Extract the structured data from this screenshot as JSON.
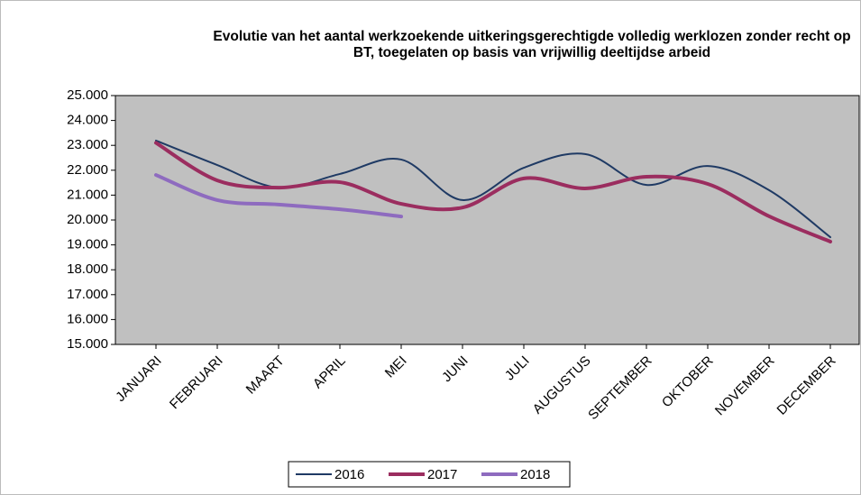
{
  "chart_data": {
    "type": "line",
    "title": "Evolutie van het aantal werkzoekende uitkeringsgerechtigde volledig werklozen  zonder recht op BT, toegelaten op basis van vrijwillig deeltijdse arbeid",
    "categories": [
      "JANUARI",
      "FEBRUARI",
      "MAART",
      "APRIL",
      "MEI",
      "JUNI",
      "JULI",
      "AUGUSTUS",
      "SEPTEMBER",
      "OKTOBER",
      "NOVEMBER",
      "DECEMBER"
    ],
    "series": [
      {
        "name": "2016",
        "color": "#1f3a64",
        "values": [
          23190,
          22210,
          21300,
          21850,
          22430,
          20800,
          22100,
          22650,
          21410,
          22170,
          21200,
          19310
        ]
      },
      {
        "name": "2017",
        "color": "#9b2d5f",
        "values": [
          23100,
          21590,
          21300,
          21520,
          20650,
          20500,
          21670,
          21270,
          21740,
          21450,
          20150,
          19130
        ]
      },
      {
        "name": "2018",
        "color": "#8e6bbf",
        "values": [
          21810,
          20800,
          20620,
          20430,
          20140,
          null,
          null,
          null,
          null,
          null,
          null,
          null
        ]
      }
    ],
    "ylim": [
      15000,
      25000
    ],
    "yticks": [
      {
        "value": 15000,
        "label": "15.000"
      },
      {
        "value": 16000,
        "label": "16.000"
      },
      {
        "value": 17000,
        "label": "17.000"
      },
      {
        "value": 18000,
        "label": "18.000"
      },
      {
        "value": 19000,
        "label": "19.000"
      },
      {
        "value": 20000,
        "label": "20.000"
      },
      {
        "value": 21000,
        "label": "21.000"
      },
      {
        "value": 22000,
        "label": "22.000"
      },
      {
        "value": 23000,
        "label": "23.000"
      },
      {
        "value": 24000,
        "label": "24.000"
      },
      {
        "value": 25000,
        "label": "25.000"
      }
    ],
    "legend": "bottom",
    "smooth": true
  }
}
